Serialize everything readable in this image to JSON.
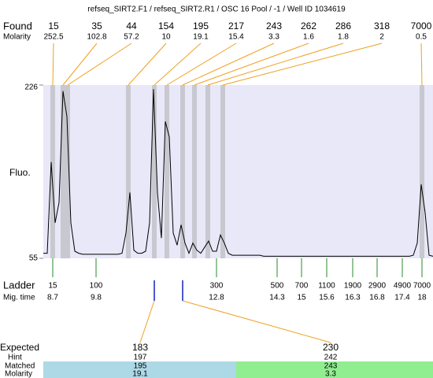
{
  "chart_data": {
    "type": "electropherogram",
    "title": "refseq_SIRT2.F1 / refseq_SIRT2.R1 / OSC 16 Pool / -1 / Well ID 1034619",
    "y_label": "Fluo.",
    "ylim": [
      55,
      226
    ],
    "yticks": [
      55,
      226
    ],
    "trace_color": "#000000",
    "plot_color": "#e8e8f8",
    "trace": [
      60,
      60,
      150,
      90,
      110,
      220,
      195,
      90,
      62,
      60,
      59,
      59,
      59,
      59,
      59,
      59,
      59,
      59,
      59,
      59,
      60,
      80,
      120,
      63,
      60,
      60,
      62,
      90,
      222,
      120,
      75,
      190,
      175,
      80,
      68,
      88,
      70,
      60,
      70,
      63,
      60,
      66,
      72,
      62,
      62,
      78,
      70,
      60,
      58,
      58,
      58,
      58,
      58,
      58,
      58,
      58,
      57,
      57,
      57,
      57,
      57,
      57,
      57,
      57,
      57,
      57,
      57,
      57,
      57,
      57,
      57,
      57,
      57,
      57,
      57,
      57,
      57,
      57,
      57,
      57,
      57,
      57,
      57,
      57,
      57,
      57,
      57,
      57,
      57,
      57,
      57,
      57,
      57,
      57,
      58,
      70,
      128,
      100,
      58,
      57
    ],
    "found": {
      "label": "Found",
      "molarity_label": "Molarity",
      "sizes": [
        15,
        35,
        44,
        154,
        195,
        217,
        243,
        262,
        286,
        318,
        7000
      ],
      "molarity": [
        252.5,
        102.8,
        57.2,
        10,
        19.1,
        15.4,
        3.3,
        1.6,
        1.8,
        2,
        0.5
      ]
    },
    "ladder": {
      "label": "Ladder",
      "mig_label": "Mig. time",
      "sizes": [
        15,
        100,
        300,
        500,
        700,
        1100,
        1900,
        2900,
        4900,
        7000
      ],
      "mig_times": [
        8.7,
        9.8,
        12.8,
        14.3,
        15,
        15.6,
        16.3,
        16.8,
        17.4,
        18
      ]
    },
    "expected": {
      "label": "Expected",
      "hint_label": "Hint",
      "matched_label": "Matched",
      "molarity_label": "Molarity",
      "sizes": [
        183,
        230
      ],
      "hint": [
        197,
        242
      ],
      "matched": [
        195,
        243
      ],
      "molarity": [
        19.1,
        3.3
      ]
    }
  }
}
